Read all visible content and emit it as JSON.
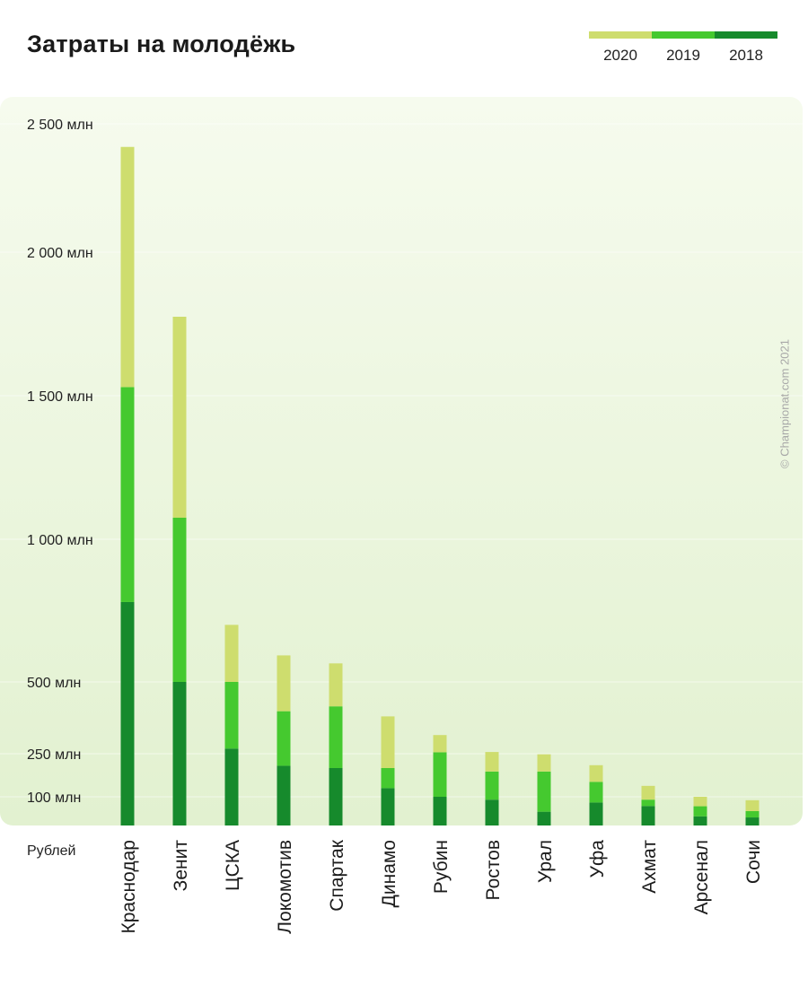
{
  "chart_data": {
    "type": "bar",
    "stacked": true,
    "title": "Затраты на молодёжь",
    "xlabel": "",
    "ylabel": "Рублей",
    "categories": [
      "Краснодар",
      "Зенит",
      "ЦСКА",
      "Локомотив",
      "Спартак",
      "Динамо",
      "Рубин",
      "Ростов",
      "Урал",
      "Уфа",
      "Ахмат",
      "Арсенал",
      "Сочи"
    ],
    "series": [
      {
        "name": "2018",
        "color": "#168a2c",
        "values": [
          780,
          500,
          268,
          208,
          200,
          130,
          100,
          90,
          48,
          80,
          68,
          32,
          28
        ]
      },
      {
        "name": "2019",
        "color": "#45c92f",
        "values": [
          750,
          575,
          232,
          190,
          215,
          70,
          155,
          98,
          140,
          72,
          22,
          35,
          22
        ]
      },
      {
        "name": "2020",
        "color": "#cedd6e",
        "values": [
          880,
          700,
          200,
          195,
          150,
          180,
          60,
          68,
          60,
          58,
          48,
          33,
          38
        ]
      }
    ],
    "y_ticks": [
      {
        "value": 100,
        "label": "100 млн"
      },
      {
        "value": 250,
        "label": "250 млн"
      },
      {
        "value": 500,
        "label": "500 млн"
      },
      {
        "value": 1000,
        "label": "1 000 млн"
      },
      {
        "value": 1500,
        "label": "1 500 млн"
      },
      {
        "value": 2000,
        "label": "2 000 млн"
      },
      {
        "value": 2500,
        "label": "2 500 млн"
      }
    ],
    "ylim": [
      0,
      2500
    ],
    "legend": {
      "position": "top-right",
      "order": [
        "2020",
        "2019",
        "2018"
      ]
    }
  },
  "watermark": "© Championat.com 2021"
}
